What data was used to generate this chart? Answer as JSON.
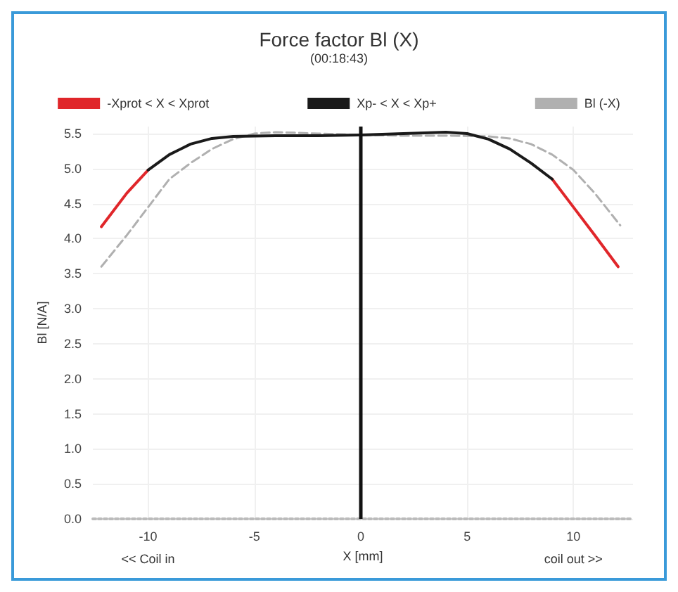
{
  "chart_data": {
    "type": "line",
    "title": "Force factor Bl (X)",
    "subtitle": "(00:18:43)",
    "xlabel": "X [mm]",
    "ylabel": "Bl [N/A]",
    "annotations": [
      "<< Coil in",
      "coil out >>"
    ],
    "xlim": [
      -12.6,
      12.8
    ],
    "xticks": [
      -10,
      -5,
      0,
      5,
      10
    ],
    "ylim": [
      0,
      5.6
    ],
    "yticks": [
      {
        "value": 0,
        "label": "0.0"
      },
      0.5,
      {
        "value": 1,
        "label": "1.0"
      },
      1.5,
      {
        "value": 2,
        "label": "2.0"
      },
      2.5,
      {
        "value": 3,
        "label": "3.0"
      },
      3.5,
      {
        "value": 4,
        "label": "4.0"
      },
      4.5,
      {
        "value": 5,
        "label": "5.0"
      },
      5.5
    ],
    "grid": true,
    "legend": "top",
    "marker": "none",
    "ref_lines": [
      {
        "axis": "x",
        "value": 0,
        "label": null,
        "color": "#111111"
      }
    ],
    "series": [
      {
        "name": "-Xprot < X < Xprot",
        "color": "#e0262a",
        "x": [
          -12.2,
          -11,
          -10,
          -9,
          -8,
          -7,
          -6,
          -4,
          -2,
          0,
          2,
          4,
          5,
          6,
          7,
          8,
          9,
          10,
          11,
          12.1
        ],
        "values": [
          4.17,
          4.65,
          4.98,
          null,
          null,
          null,
          null,
          null,
          null,
          null,
          null,
          null,
          null,
          null,
          null,
          null,
          4.85,
          4.45,
          4.05,
          3.6
        ]
      },
      {
        "name": "Xp- < X < Xp+",
        "color": "#1a1a1a",
        "x": [
          -10,
          -9,
          -8,
          -7,
          -6,
          -4,
          -2,
          0,
          2,
          4,
          5,
          6,
          7,
          8,
          9
        ],
        "values": [
          4.98,
          5.2,
          5.35,
          5.43,
          5.46,
          5.47,
          5.47,
          5.48,
          5.5,
          5.52,
          5.5,
          5.42,
          5.28,
          5.08,
          4.85
        ]
      },
      {
        "name": "Bl (-X)",
        "color": "#b0b0b0",
        "line_style": "dashed",
        "x": [
          -12.2,
          -11,
          -10,
          -9,
          -8,
          -7,
          -6,
          -5,
          -4,
          -2,
          0,
          2,
          4,
          6,
          7,
          8,
          9,
          10,
          11,
          12.2
        ],
        "values": [
          3.6,
          4.05,
          4.45,
          4.85,
          5.08,
          5.28,
          5.42,
          5.5,
          5.52,
          5.5,
          5.48,
          5.47,
          5.47,
          5.46,
          5.43,
          5.35,
          5.2,
          4.98,
          4.65,
          4.19
        ]
      }
    ]
  }
}
